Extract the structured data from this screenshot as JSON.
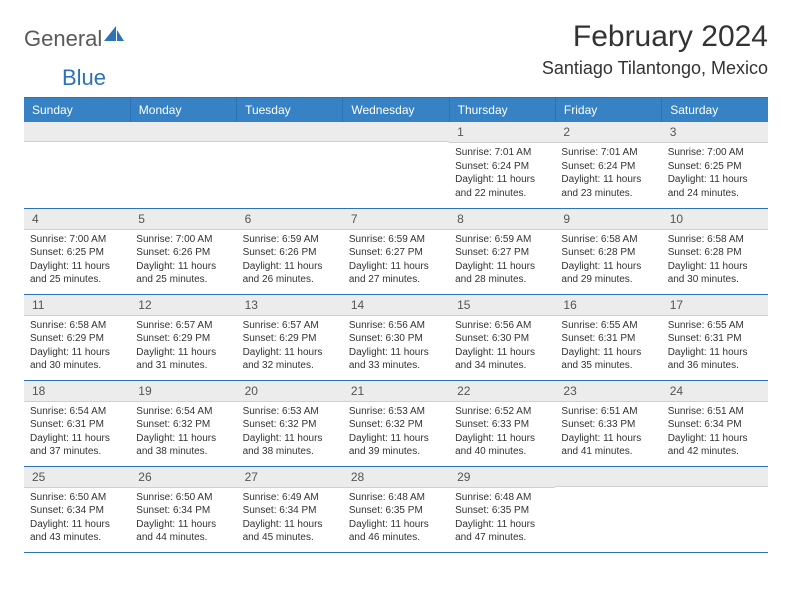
{
  "logo": {
    "text1": "General",
    "text2": "Blue",
    "icon_color": "#2d72b5"
  },
  "title": "February 2024",
  "location": "Santiago Tilantongo, Mexico",
  "header_bg": "#3682c4",
  "rule_color": "#2d72b5",
  "weekdays": [
    "Sunday",
    "Monday",
    "Tuesday",
    "Wednesday",
    "Thursday",
    "Friday",
    "Saturday"
  ],
  "weeks": [
    [
      null,
      null,
      null,
      null,
      {
        "d": "1",
        "sr": "7:01 AM",
        "ss": "6:24 PM",
        "dl": "11 hours and 22 minutes."
      },
      {
        "d": "2",
        "sr": "7:01 AM",
        "ss": "6:24 PM",
        "dl": "11 hours and 23 minutes."
      },
      {
        "d": "3",
        "sr": "7:00 AM",
        "ss": "6:25 PM",
        "dl": "11 hours and 24 minutes."
      }
    ],
    [
      {
        "d": "4",
        "sr": "7:00 AM",
        "ss": "6:25 PM",
        "dl": "11 hours and 25 minutes."
      },
      {
        "d": "5",
        "sr": "7:00 AM",
        "ss": "6:26 PM",
        "dl": "11 hours and 25 minutes."
      },
      {
        "d": "6",
        "sr": "6:59 AM",
        "ss": "6:26 PM",
        "dl": "11 hours and 26 minutes."
      },
      {
        "d": "7",
        "sr": "6:59 AM",
        "ss": "6:27 PM",
        "dl": "11 hours and 27 minutes."
      },
      {
        "d": "8",
        "sr": "6:59 AM",
        "ss": "6:27 PM",
        "dl": "11 hours and 28 minutes."
      },
      {
        "d": "9",
        "sr": "6:58 AM",
        "ss": "6:28 PM",
        "dl": "11 hours and 29 minutes."
      },
      {
        "d": "10",
        "sr": "6:58 AM",
        "ss": "6:28 PM",
        "dl": "11 hours and 30 minutes."
      }
    ],
    [
      {
        "d": "11",
        "sr": "6:58 AM",
        "ss": "6:29 PM",
        "dl": "11 hours and 30 minutes."
      },
      {
        "d": "12",
        "sr": "6:57 AM",
        "ss": "6:29 PM",
        "dl": "11 hours and 31 minutes."
      },
      {
        "d": "13",
        "sr": "6:57 AM",
        "ss": "6:29 PM",
        "dl": "11 hours and 32 minutes."
      },
      {
        "d": "14",
        "sr": "6:56 AM",
        "ss": "6:30 PM",
        "dl": "11 hours and 33 minutes."
      },
      {
        "d": "15",
        "sr": "6:56 AM",
        "ss": "6:30 PM",
        "dl": "11 hours and 34 minutes."
      },
      {
        "d": "16",
        "sr": "6:55 AM",
        "ss": "6:31 PM",
        "dl": "11 hours and 35 minutes."
      },
      {
        "d": "17",
        "sr": "6:55 AM",
        "ss": "6:31 PM",
        "dl": "11 hours and 36 minutes."
      }
    ],
    [
      {
        "d": "18",
        "sr": "6:54 AM",
        "ss": "6:31 PM",
        "dl": "11 hours and 37 minutes."
      },
      {
        "d": "19",
        "sr": "6:54 AM",
        "ss": "6:32 PM",
        "dl": "11 hours and 38 minutes."
      },
      {
        "d": "20",
        "sr": "6:53 AM",
        "ss": "6:32 PM",
        "dl": "11 hours and 38 minutes."
      },
      {
        "d": "21",
        "sr": "6:53 AM",
        "ss": "6:32 PM",
        "dl": "11 hours and 39 minutes."
      },
      {
        "d": "22",
        "sr": "6:52 AM",
        "ss": "6:33 PM",
        "dl": "11 hours and 40 minutes."
      },
      {
        "d": "23",
        "sr": "6:51 AM",
        "ss": "6:33 PM",
        "dl": "11 hours and 41 minutes."
      },
      {
        "d": "24",
        "sr": "6:51 AM",
        "ss": "6:34 PM",
        "dl": "11 hours and 42 minutes."
      }
    ],
    [
      {
        "d": "25",
        "sr": "6:50 AM",
        "ss": "6:34 PM",
        "dl": "11 hours and 43 minutes."
      },
      {
        "d": "26",
        "sr": "6:50 AM",
        "ss": "6:34 PM",
        "dl": "11 hours and 44 minutes."
      },
      {
        "d": "27",
        "sr": "6:49 AM",
        "ss": "6:34 PM",
        "dl": "11 hours and 45 minutes."
      },
      {
        "d": "28",
        "sr": "6:48 AM",
        "ss": "6:35 PM",
        "dl": "11 hours and 46 minutes."
      },
      {
        "d": "29",
        "sr": "6:48 AM",
        "ss": "6:35 PM",
        "dl": "11 hours and 47 minutes."
      },
      null,
      null
    ]
  ],
  "labels": {
    "sunrise": "Sunrise:",
    "sunset": "Sunset:",
    "daylight": "Daylight:"
  }
}
